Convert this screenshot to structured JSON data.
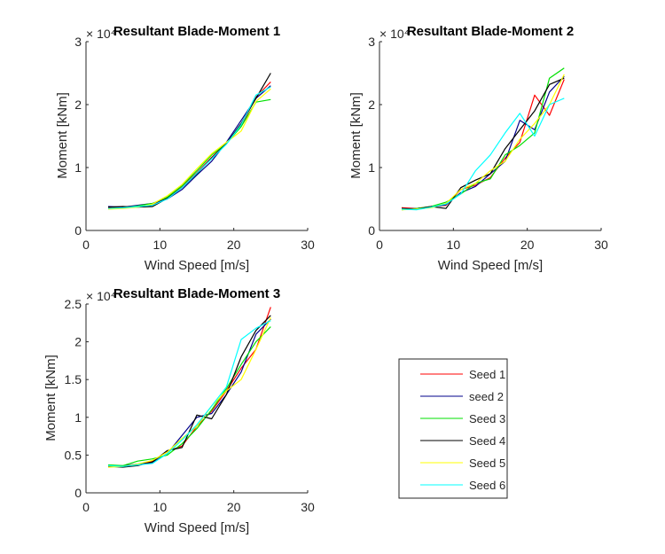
{
  "chart_data": [
    {
      "type": "line",
      "title": "Resultant Blade-Moment 1",
      "xlabel": "Wind Speed [m/s]",
      "ylabel": "Moment [kNm]",
      "exponent_label": "× 10⁴",
      "xlim": [
        0,
        30
      ],
      "ylim": [
        0,
        30000
      ],
      "xticks": [
        0,
        10,
        20,
        30
      ],
      "yticks": [
        0,
        10000,
        20000,
        30000
      ],
      "yticklabels": [
        "0",
        "1",
        "2",
        "3"
      ],
      "x": [
        3,
        5,
        7,
        9,
        11,
        13,
        15,
        17,
        19,
        21,
        23,
        25
      ],
      "series": [
        {
          "name": "Seed 1",
          "values": [
            3600,
            3600,
            3800,
            4100,
            5200,
            7000,
            9200,
            11600,
            13900,
            16600,
            21200,
            23600
          ]
        },
        {
          "name": "seed 2",
          "values": [
            3800,
            3700,
            4000,
            4300,
            5000,
            6500,
            8800,
            11000,
            14000,
            17500,
            21000,
            23000
          ]
        },
        {
          "name": "Seed 3",
          "values": [
            3500,
            3600,
            3900,
            4300,
            5300,
            7100,
            9500,
            12000,
            13800,
            16500,
            20400,
            20800
          ]
        },
        {
          "name": "Seed 4",
          "values": [
            3700,
            3800,
            3700,
            3800,
            5100,
            6800,
            9000,
            11500,
            13800,
            17000,
            21000,
            25000
          ]
        },
        {
          "name": "Seed 5",
          "values": [
            3400,
            3500,
            3700,
            4200,
            5500,
            7300,
            9800,
            12200,
            14000,
            15800,
            20500,
            22500
          ]
        },
        {
          "name": "Seed 6",
          "values": [
            3500,
            3600,
            3800,
            4000,
            5000,
            6800,
            9100,
            11400,
            13700,
            16800,
            21500,
            22800
          ]
        }
      ]
    },
    {
      "type": "line",
      "title": "Resultant Blade-Moment 2",
      "xlabel": "Wind Speed [m/s]",
      "ylabel": "Moment [kNm]",
      "exponent_label": "× 10⁴",
      "xlim": [
        0,
        30
      ],
      "ylim": [
        0,
        30000
      ],
      "xticks": [
        0,
        10,
        20,
        30
      ],
      "yticks": [
        0,
        10000,
        20000,
        30000
      ],
      "yticklabels": [
        "0",
        "1",
        "2",
        "3"
      ],
      "x": [
        3,
        5,
        7,
        9,
        11,
        13,
        15,
        17,
        19,
        21,
        23,
        25
      ],
      "series": [
        {
          "name": "Seed 1",
          "values": [
            3600,
            3500,
            3800,
            4000,
            6500,
            7200,
            8400,
            11500,
            14000,
            21500,
            18300,
            24000
          ]
        },
        {
          "name": "seed 2",
          "values": [
            3400,
            3500,
            3700,
            4100,
            6000,
            7000,
            9000,
            11000,
            17500,
            16000,
            22000,
            24500
          ]
        },
        {
          "name": "Seed 3",
          "values": [
            3300,
            3500,
            3800,
            4500,
            5800,
            7500,
            8200,
            12000,
            13500,
            15500,
            24200,
            25800
          ]
        },
        {
          "name": "Seed 4",
          "values": [
            3500,
            3400,
            3800,
            3500,
            6800,
            8000,
            9000,
            13000,
            16000,
            19000,
            23200,
            24200
          ]
        },
        {
          "name": "Seed 5",
          "values": [
            3300,
            3400,
            3600,
            4300,
            6500,
            7500,
            9500,
            11000,
            14500,
            17000,
            20000,
            24800
          ]
        },
        {
          "name": "Seed 6",
          "values": [
            3400,
            3300,
            3700,
            4200,
            5800,
            9500,
            12000,
            15500,
            18600,
            15000,
            20000,
            21000
          ]
        }
      ]
    },
    {
      "type": "line",
      "title": "Resultant Blade-Moment 3",
      "xlabel": "Wind Speed [m/s]",
      "ylabel": "Moment [kNm]",
      "exponent_label": "× 10⁴",
      "xlim": [
        0,
        30
      ],
      "ylim": [
        0,
        25000
      ],
      "xticks": [
        0,
        10,
        20,
        30
      ],
      "yticks": [
        0,
        5000,
        10000,
        15000,
        20000,
        25000
      ],
      "yticklabels": [
        "0",
        "0.5",
        "1",
        "1.5",
        "2",
        "2.5"
      ],
      "x": [
        3,
        5,
        7,
        9,
        11,
        13,
        15,
        17,
        19,
        21,
        23,
        25
      ],
      "series": [
        {
          "name": "Seed 1",
          "values": [
            3600,
            3500,
            3700,
            4200,
            5500,
            6200,
            8800,
            10800,
            13500,
            16500,
            19000,
            24600
          ]
        },
        {
          "name": "seed 2",
          "values": [
            3500,
            3600,
            3800,
            4000,
            5200,
            7600,
            10000,
            10500,
            13000,
            16000,
            21000,
            23000
          ]
        },
        {
          "name": "Seed 3",
          "values": [
            3700,
            3600,
            4200,
            4500,
            5000,
            6500,
            8500,
            11000,
            13800,
            17000,
            20000,
            22000
          ]
        },
        {
          "name": "Seed 4",
          "values": [
            3500,
            3400,
            3600,
            4100,
            5600,
            6000,
            10300,
            9800,
            13000,
            18000,
            21500,
            23500
          ]
        },
        {
          "name": "Seed 5",
          "values": [
            3400,
            3500,
            3800,
            4300,
            5400,
            7200,
            8800,
            11500,
            13500,
            15000,
            19000,
            23200
          ]
        },
        {
          "name": "Seed 6",
          "values": [
            3600,
            3500,
            3700,
            3900,
            5200,
            7000,
            9000,
            11500,
            14000,
            20300,
            21800,
            22800
          ]
        }
      ]
    }
  ],
  "legend": {
    "placement": "bottom-right",
    "entries": [
      {
        "label": "Seed 1",
        "color": "#ff0000"
      },
      {
        "label": "seed 2",
        "color": "#00008b"
      },
      {
        "label": "Seed 3",
        "color": "#00e000"
      },
      {
        "label": "Seed 4",
        "color": "#000000"
      },
      {
        "label": "Seed 5",
        "color": "#ffff00"
      },
      {
        "label": "Seed 6",
        "color": "#00ffff"
      }
    ]
  }
}
